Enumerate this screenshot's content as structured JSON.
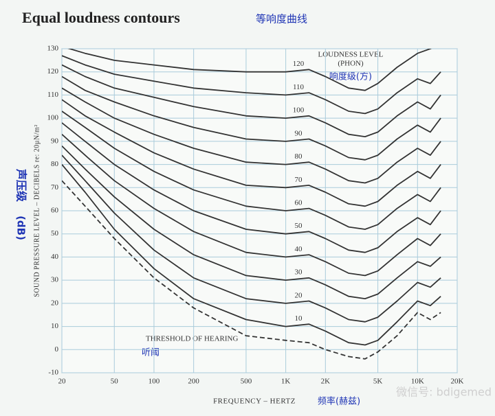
{
  "chart_data": {
    "type": "line",
    "title": "Equal loudness contours",
    "subtitle": "等响度曲线",
    "x_label": "FREQUENCY – HERTZ",
    "x_label_cn": "频率(赫兹)",
    "y_label": "SOUND PRESSURE LEVEL – DECIBELS re: 20µN/m²",
    "y_label_cn": "声压级",
    "y_label_unit": "(dB)",
    "legend_title": "LOUDNESS LEVEL",
    "legend_unit": "(PHON)",
    "legend_title_cn": "响度级(方)",
    "threshold_label_cn": "听阈",
    "watermark": "微信号: bdigemed",
    "x_log": true,
    "grid": true,
    "xlim": [
      20,
      20000
    ],
    "ylim": [
      -10,
      130
    ],
    "xticks": [
      20,
      50,
      100,
      200,
      500,
      {
        "value": 1000,
        "label": "1K"
      },
      {
        "value": 2000,
        "label": "2K"
      },
      {
        "value": 5000,
        "label": "5K"
      },
      {
        "value": 10000,
        "label": "10K"
      },
      {
        "value": 20000,
        "label": "20K"
      }
    ],
    "yticks": [
      -10,
      0,
      10,
      20,
      30,
      40,
      50,
      60,
      70,
      80,
      90,
      100,
      110,
      120,
      130
    ],
    "x": [
      20,
      30,
      50,
      100,
      200,
      500,
      1000,
      1500,
      2000,
      3000,
      4000,
      5000,
      7000,
      10000,
      12500,
      15000
    ],
    "series": [
      {
        "name": "THRESHOLD OF HEARING",
        "color": "#333333",
        "dashed": true,
        "values": [
          73,
          62,
          48,
          31,
          18,
          6,
          4,
          3,
          0,
          -3,
          -4,
          -1,
          6,
          16,
          13,
          16
        ]
      },
      {
        "name": "10",
        "color": "#333333",
        "values": [
          80,
          68,
          52,
          35,
          22,
          13,
          10,
          11,
          8,
          3,
          2,
          4,
          12,
          21,
          19,
          23
        ]
      },
      {
        "name": "20",
        "color": "#333333",
        "values": [
          84,
          73,
          59,
          43,
          31,
          22,
          20,
          21,
          18,
          13,
          12,
          14,
          21,
          29,
          27,
          31
        ]
      },
      {
        "name": "30",
        "color": "#333333",
        "values": [
          88,
          78,
          66,
          52,
          41,
          32,
          30,
          31,
          28,
          23,
          22,
          24,
          31,
          38,
          36,
          40
        ]
      },
      {
        "name": "40",
        "color": "#333333",
        "values": [
          93,
          84,
          73,
          61,
          51,
          42,
          40,
          41,
          38,
          33,
          32,
          34,
          41,
          48,
          45,
          50
        ]
      },
      {
        "name": "50",
        "color": "#333333",
        "values": [
          98,
          90,
          80,
          69,
          60,
          52,
          50,
          51,
          48,
          43,
          42,
          44,
          51,
          57,
          54,
          60
        ]
      },
      {
        "name": "60",
        "color": "#333333",
        "values": [
          103,
          96,
          87,
          77,
          69,
          62,
          60,
          61,
          58,
          53,
          52,
          54,
          61,
          67,
          64,
          70
        ]
      },
      {
        "name": "70",
        "color": "#333333",
        "values": [
          108,
          101,
          94,
          85,
          78,
          71,
          70,
          71,
          68,
          63,
          62,
          64,
          71,
          77,
          74,
          80
        ]
      },
      {
        "name": "80",
        "color": "#333333",
        "values": [
          113,
          107,
          100,
          93,
          87,
          81,
          80,
          81,
          78,
          73,
          72,
          74,
          81,
          87,
          84,
          90
        ]
      },
      {
        "name": "90",
        "color": "#333333",
        "values": [
          118,
          112,
          107,
          101,
          96,
          91,
          90,
          91,
          88,
          83,
          82,
          84,
          91,
          97,
          94,
          100
        ]
      },
      {
        "name": "100",
        "color": "#333333",
        "values": [
          123,
          118,
          113,
          109,
          105,
          101,
          100,
          101,
          98,
          93,
          92,
          94,
          101,
          107,
          104,
          110
        ]
      },
      {
        "name": "110",
        "color": "#333333",
        "values": [
          127,
          123,
          119,
          116,
          113,
          111,
          110,
          111,
          108,
          103,
          102,
          104,
          111,
          117,
          115,
          120
        ]
      },
      {
        "name": "120",
        "color": "#333333",
        "values": [
          131,
          128,
          125,
          123,
          121,
          120,
          120,
          121,
          118,
          113,
          112,
          115,
          122,
          128,
          130,
          132
        ]
      }
    ]
  }
}
